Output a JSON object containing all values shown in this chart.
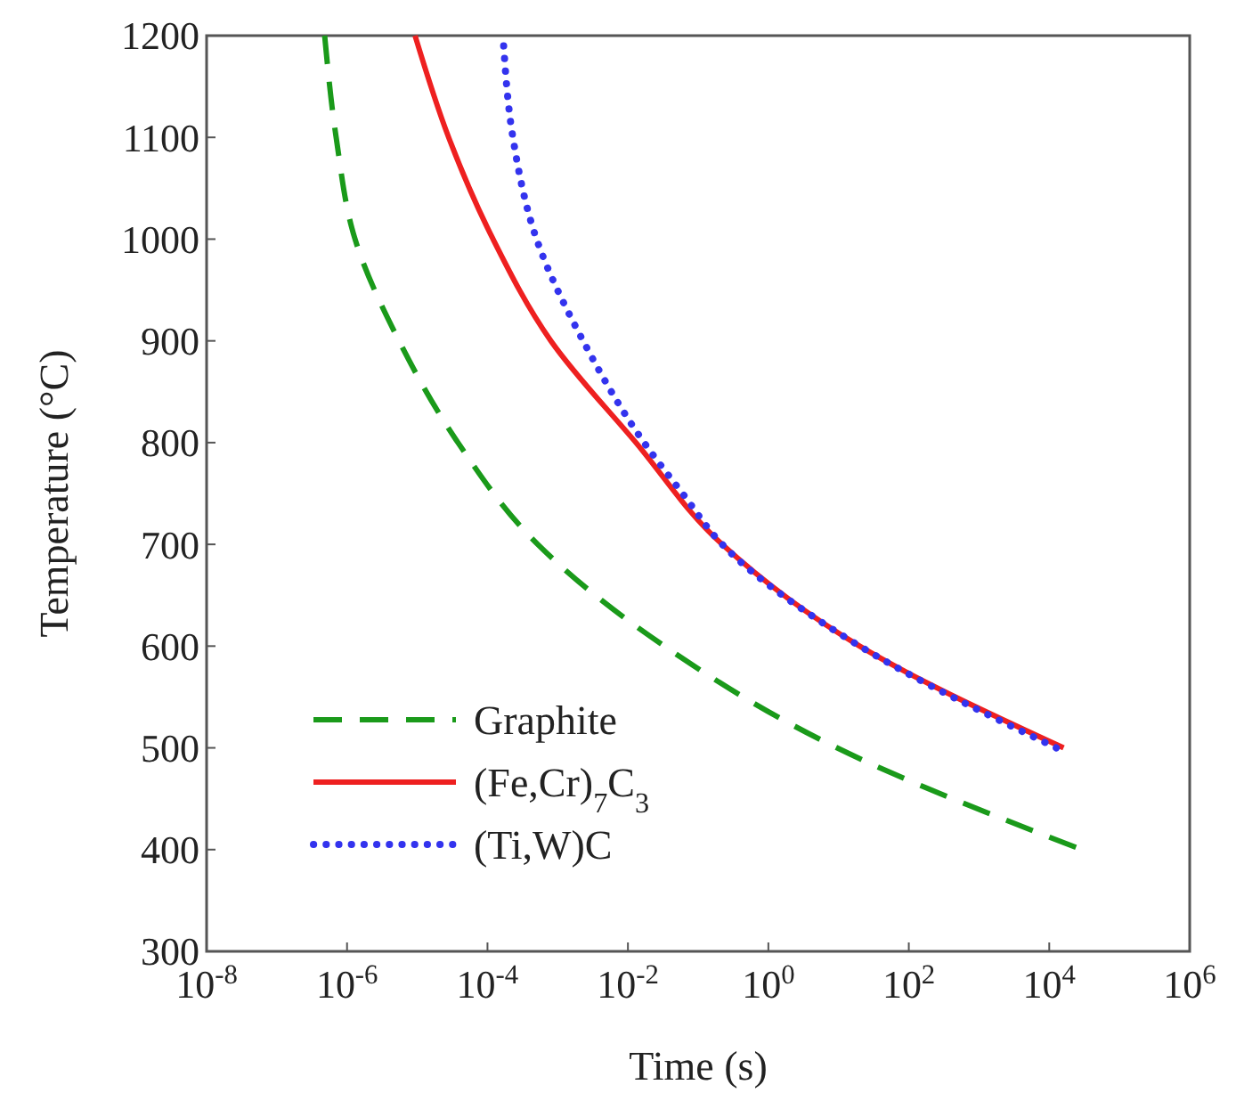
{
  "chart_data": {
    "type": "line",
    "xlabel": "Time (s)",
    "ylabel": "Temperature (°C)",
    "log": "x",
    "xlim": [
      1e-08,
      1000000.0
    ],
    "ylim": [
      300,
      1200
    ],
    "xticks": [
      {
        "value": 1e-08,
        "label": "10$^{-8}$"
      },
      {
        "value": 1e-06,
        "label": "10$^{-6}$"
      },
      {
        "value": 0.0001,
        "label": "10$^{-4}$"
      },
      {
        "value": 0.01,
        "label": "10$^{-2}$"
      },
      {
        "value": 1,
        "label": "10$^{0}$"
      },
      {
        "value": 100,
        "label": "10$^{2}$"
      },
      {
        "value": 10000,
        "label": "10$^{4}$"
      },
      {
        "value": 1000000,
        "label": "10$^{6}$"
      }
    ],
    "yticks": [
      300,
      400,
      500,
      600,
      700,
      800,
      900,
      1000,
      1100,
      1200
    ],
    "grid": false,
    "legend": "bottom left",
    "marker": "none",
    "series": [
      {
        "name": "Graphite",
        "color": "#1a9a1a",
        "line_style": "dashed",
        "x": [
          4.8e-07,
          7e-07,
          1.3e-06,
          5.5e-06,
          3.8e-05,
          0.00052,
          0.033,
          9.5,
          29000
        ],
        "values": [
          1200,
          1100,
          1000,
          900,
          800,
          700,
          600,
          500,
          400
        ]
      },
      {
        "name": "(Fe,Cr)$_{7}$C$_{3}$",
        "color": "#ee2020",
        "line_style": "solid",
        "x": [
          9.3e-06,
          2.8e-05,
          0.00012,
          0.0008,
          0.013,
          0.22,
          20,
          16000
        ],
        "values": [
          1200,
          1100,
          1000,
          900,
          800,
          700,
          600,
          500
        ]
      },
      {
        "name": "(Ti,W)C",
        "color": "#3333ee",
        "line_style": "dotted",
        "x": [
          0.00017,
          0.00023,
          0.0005,
          0.0023,
          0.017,
          0.06,
          0.22,
          20,
          12600
        ],
        "values": [
          1190,
          1100,
          1000,
          900,
          800,
          750,
          700,
          600,
          500
        ]
      }
    ]
  }
}
